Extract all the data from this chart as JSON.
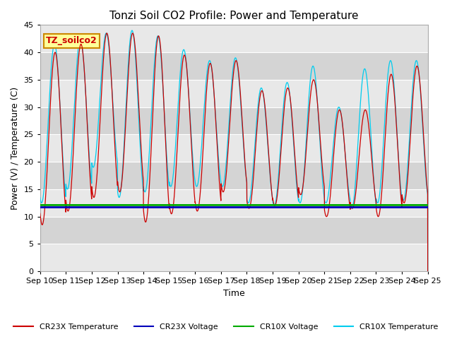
{
  "title": "Tonzi Soil CO2 Profile: Power and Temperature",
  "xlabel": "Time",
  "ylabel": "Power (V) / Temperature (C)",
  "ylim": [
    0,
    45
  ],
  "yticks": [
    0,
    5,
    10,
    15,
    20,
    25,
    30,
    35,
    40,
    45
  ],
  "xtick_labels": [
    "Sep 10",
    "Sep 11",
    "Sep 12",
    "Sep 13",
    "Sep 14",
    "Sep 15",
    "Sep 16",
    "Sep 17",
    "Sep 18",
    "Sep 19",
    "Sep 20",
    "Sep 21",
    "Sep 22",
    "Sep 23",
    "Sep 24",
    "Sep 25"
  ],
  "cr23x_temp_color": "#cc0000",
  "cr23x_volt_color": "#0000bb",
  "cr10x_volt_color": "#00aa00",
  "cr10x_temp_color": "#00ccee",
  "cr23x_volt_value": 11.7,
  "cr10x_volt_value": 12.1,
  "plot_bg_color": "#e8e8e8",
  "grid_color": "#ffffff",
  "annotation_text": "TZ_soilco2",
  "annotation_bg": "#ffff99",
  "annotation_border": "#cc8800",
  "legend_items": [
    "CR23X Temperature",
    "CR23X Voltage",
    "CR10X Voltage",
    "CR10X Temperature"
  ],
  "legend_colors": [
    "#cc0000",
    "#0000bb",
    "#00aa00",
    "#00ccee"
  ],
  "daily_peaks_cr23x": [
    40.0,
    41.5,
    43.5,
    43.5,
    43.0,
    39.5,
    38.0,
    38.5,
    33.0,
    33.5,
    35.0,
    29.5,
    29.5,
    36.0,
    37.5
  ],
  "daily_mins_cr23x": [
    8.5,
    11.0,
    13.5,
    14.5,
    9.0,
    10.5,
    11.0,
    14.5,
    11.5,
    12.0,
    14.0,
    10.0,
    11.5,
    10.0,
    12.5
  ],
  "daily_peaks_cr10x": [
    41.5,
    42.5,
    43.5,
    44.0,
    43.0,
    40.5,
    38.5,
    39.0,
    33.5,
    34.5,
    37.5,
    30.0,
    37.0,
    38.5,
    38.5
  ],
  "daily_mins_cr10x": [
    12.5,
    15.0,
    19.0,
    13.5,
    14.5,
    15.5,
    15.5,
    15.5,
    12.5,
    12.0,
    12.5,
    12.5,
    11.5,
    12.5,
    13.0
  ]
}
